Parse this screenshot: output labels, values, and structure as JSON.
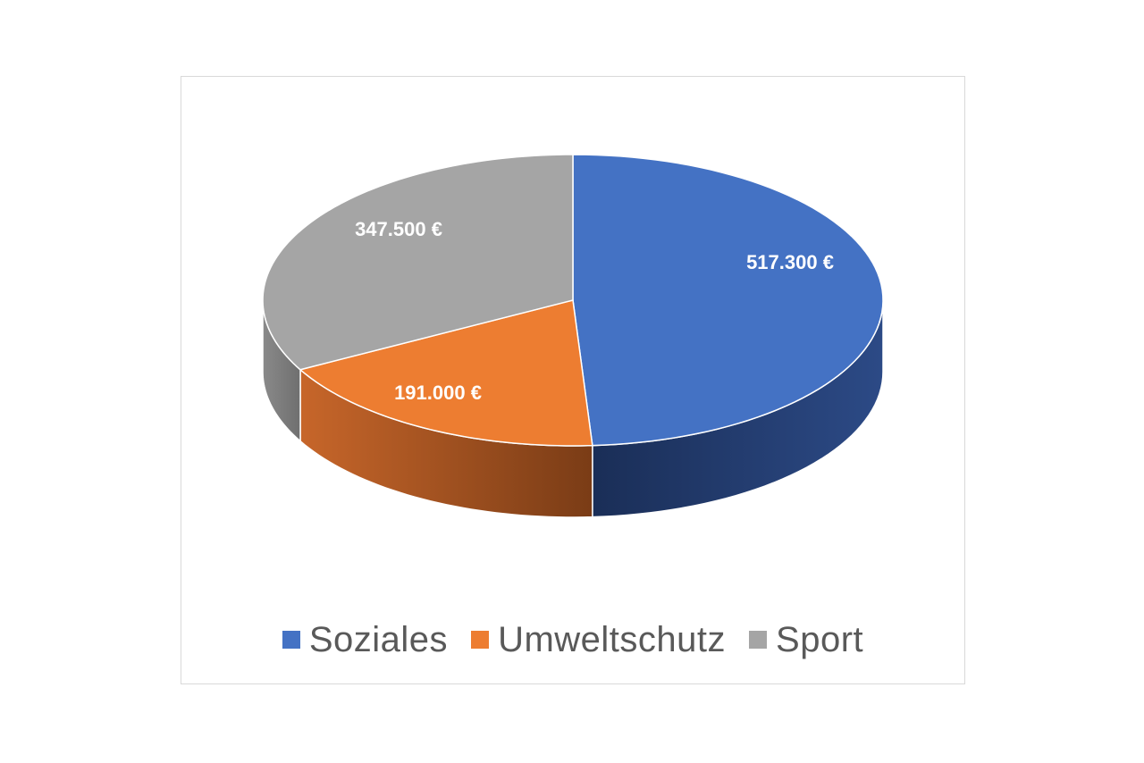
{
  "chart_data": {
    "type": "pie",
    "style": "3d",
    "title": "",
    "categories": [
      "Soziales",
      "Umweltschutz",
      "Sport"
    ],
    "values": [
      517300,
      191000,
      347500
    ],
    "value_labels": [
      "517.300 €",
      "191.000 €",
      "347.500 €"
    ],
    "colors": [
      "#4472C4",
      "#ED7D31",
      "#A5A5A5"
    ],
    "legend_position": "bottom"
  },
  "legend": {
    "items": [
      {
        "label": "Soziales",
        "color": "#4472C4"
      },
      {
        "label": "Umweltschutz",
        "color": "#ED7D31"
      },
      {
        "label": "Sport",
        "color": "#A5A5A5"
      }
    ]
  }
}
